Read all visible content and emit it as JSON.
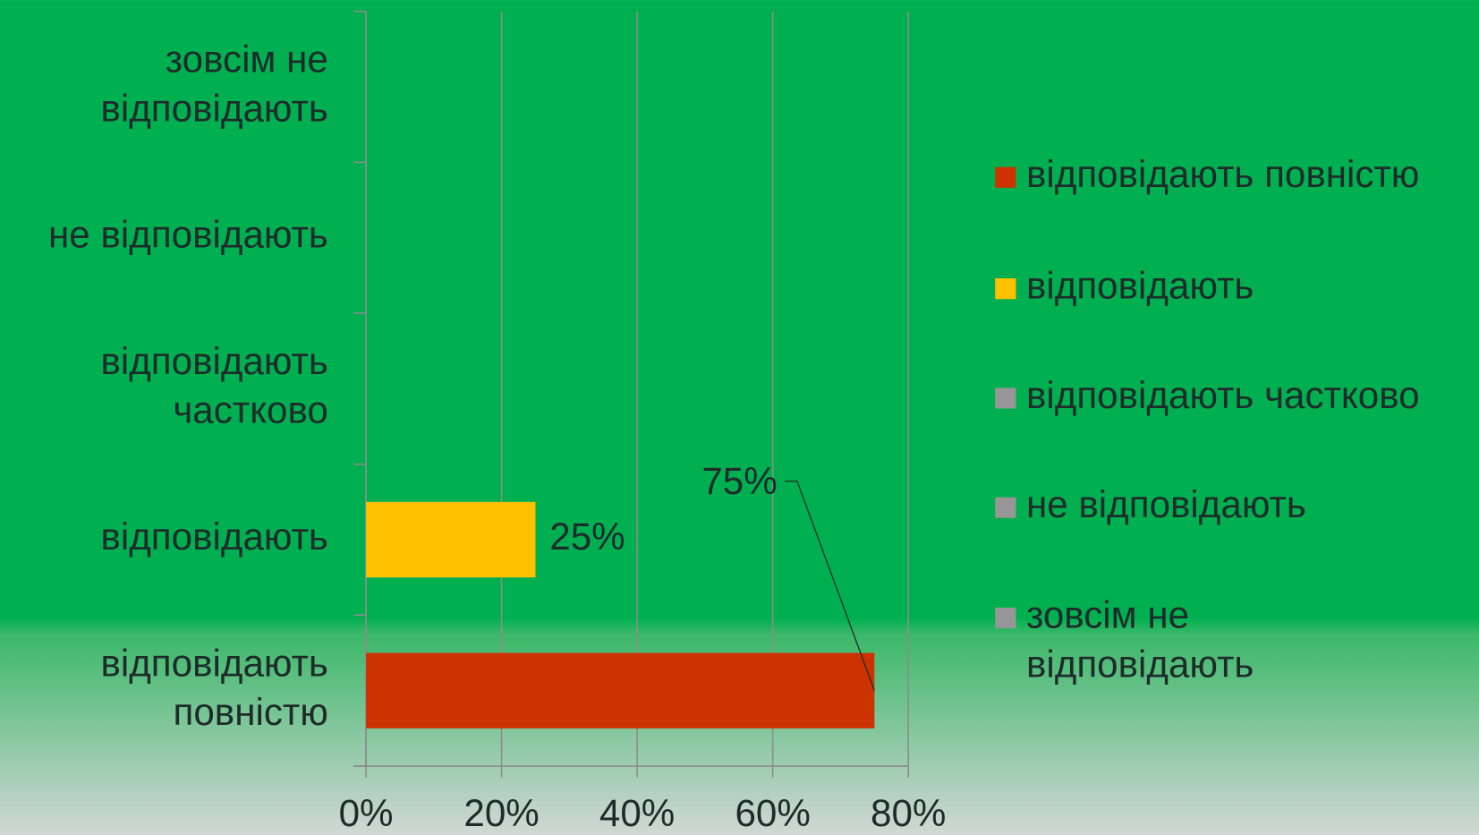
{
  "chart_data": {
    "type": "bar",
    "orientation": "horizontal",
    "categories": [
      "відповідають повністю",
      "відповідають",
      "відповідають частково",
      "не відповідають",
      "зовсім не відповідають"
    ],
    "values": [
      75,
      25,
      0,
      0,
      0
    ],
    "value_labels": [
      "75%",
      "25%",
      null,
      null,
      null
    ],
    "colors": [
      "#cc3300",
      "#ffc000",
      "#969696",
      "#969696",
      "#969696"
    ],
    "xlim": [
      0,
      80
    ],
    "xticks": [
      {
        "value": 0,
        "label": "0%"
      },
      {
        "value": 20,
        "label": "20%"
      },
      {
        "value": 40,
        "label": "40%"
      },
      {
        "value": 60,
        "label": "60%"
      },
      {
        "value": 80,
        "label": "80%"
      }
    ],
    "grid": true,
    "legend": "right"
  }
}
